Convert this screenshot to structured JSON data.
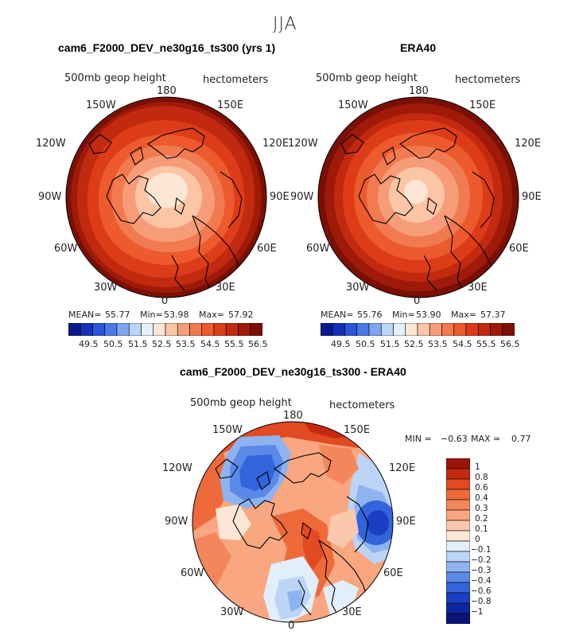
{
  "figure": {
    "title": "JJA"
  },
  "panels": [
    {
      "title": "cam6_F2000_DEV_ne30g16_ts300 (yrs 1)",
      "field_label": "500mb geop height",
      "units": "hectometers",
      "stats": {
        "mean_label": "MEAN=",
        "mean": "55.77",
        "min_label": "Min=",
        "min": "53.98",
        "max_label": "Max=",
        "max": "57.92"
      }
    },
    {
      "title": "ERA40",
      "field_label": "500mb geop height",
      "units": "hectometers",
      "stats": {
        "mean_label": "MEAN=",
        "mean": "55.76",
        "min_label": "Min=",
        "min": "53.90",
        "max_label": "Max=",
        "max": "57.37"
      }
    },
    {
      "title": "cam6_F2000_DEV_ne30g16_ts300 - ERA40",
      "field_label": "500mb geop height",
      "units": "hectometers",
      "stats_text": {
        "min_label": "MIN =",
        "min": "−0.63",
        "max_label": "MAX =",
        "max": "0.77"
      }
    }
  ],
  "longitude_labels": {
    "top": "180",
    "bottom": "0",
    "l150": "150W",
    "l120": "120W",
    "l90": "90W",
    "l60": "60W",
    "l30": "30W",
    "r150": "150E",
    "r120": "120E",
    "r90": "90E",
    "r60": "60E",
    "r30": "30E"
  },
  "colorbar_abs": {
    "labels": [
      "49.5",
      "50.5",
      "51.5",
      "52.5",
      "53.5",
      "54.5",
      "55.5",
      "56.5"
    ],
    "colors": [
      "#0a1a8c",
      "#1530b8",
      "#2a55d8",
      "#4a7ae8",
      "#7ea6f0",
      "#bcd4f6",
      "#e6f0fa",
      "#fde6d4",
      "#fbc5a6",
      "#f79c78",
      "#f27a50",
      "#ec5a2e",
      "#dd3c18",
      "#c22a10",
      "#9f1a08",
      "#7a0f04"
    ]
  },
  "colorbar_diff": {
    "labels": [
      "1",
      "0.8",
      "0.6",
      "0.4",
      "0.3",
      "0.2",
      "0.1",
      "0",
      "−0.1",
      "−0.2",
      "−0.3",
      "−0.4",
      "−0.6",
      "−0.8",
      "−1"
    ],
    "colors": [
      "#9a1508",
      "#c52a10",
      "#e24a22",
      "#ee6a3a",
      "#f3865a",
      "#f8a780",
      "#fbc8ad",
      "#fde6d6",
      "#e2eefb",
      "#bcd4f6",
      "#8fb2f0",
      "#5a8ae8",
      "#3464dc",
      "#1a3fc4",
      "#0d25a0",
      "#0a1478"
    ]
  }
}
